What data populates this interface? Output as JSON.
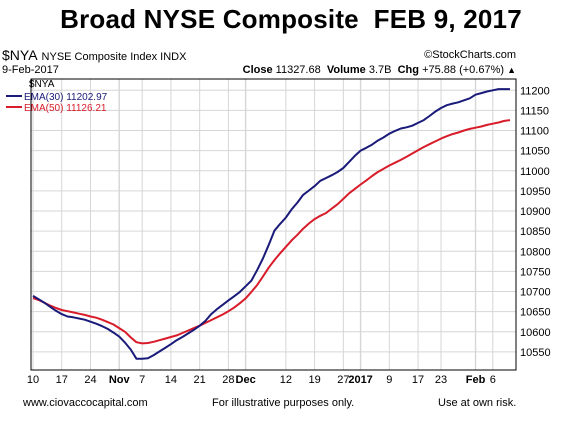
{
  "banner": "Broad NYSE Composite  FEB 9, 2017",
  "header": {
    "symbol": "$NYA",
    "name": "NYSE Composite Index INDX",
    "watermark": "©StockCharts.com",
    "date": "9-Feb-2017",
    "close_label": "Close",
    "close_value": "11327.68",
    "volume_label": "Volume",
    "volume_value": "3.7B",
    "chg_label": "Chg",
    "chg_value": "+75.88 (+0.67%)"
  },
  "footer": {
    "left": "www.ciovaccocapital.com",
    "center": "For illustrative purposes only.",
    "right": "Use at own risk."
  },
  "colors": {
    "ema30": "#1a1a7a",
    "ema50": "#d81c2a",
    "grid": "#d6d6d6",
    "frame": "#000000"
  },
  "chart_data": {
    "type": "line",
    "legend_title": "$NYA",
    "legend_position": "top-left",
    "grid": true,
    "ylim": [
      10505,
      11228
    ],
    "y_ticks": [
      10550,
      10600,
      10650,
      10700,
      10750,
      10800,
      10850,
      10900,
      10950,
      11000,
      11050,
      11100,
      11150,
      11200
    ],
    "x_ticks": [
      {
        "label": "10",
        "i": 0,
        "bold": false
      },
      {
        "label": "17",
        "i": 5,
        "bold": false
      },
      {
        "label": "24",
        "i": 10,
        "bold": false
      },
      {
        "label": "Nov",
        "i": 15,
        "bold": true
      },
      {
        "label": "7",
        "i": 19,
        "bold": false
      },
      {
        "label": "14",
        "i": 24,
        "bold": false
      },
      {
        "label": "21",
        "i": 29,
        "bold": false
      },
      {
        "label": "28",
        "i": 34,
        "bold": false
      },
      {
        "label": "Dec",
        "i": 37,
        "bold": true
      },
      {
        "label": "12",
        "i": 44,
        "bold": false
      },
      {
        "label": "19",
        "i": 49,
        "bold": false
      },
      {
        "label": "27",
        "i": 54,
        "bold": false
      },
      {
        "label": "2017",
        "i": 57,
        "bold": true
      },
      {
        "label": "9",
        "i": 62,
        "bold": false
      },
      {
        "label": "17",
        "i": 67,
        "bold": false
      },
      {
        "label": "23",
        "i": 71,
        "bold": false
      },
      {
        "label": "Feb",
        "i": 77,
        "bold": true
      },
      {
        "label": "6",
        "i": 80,
        "bold": false
      }
    ],
    "x_count": 84,
    "series": [
      {
        "name": "EMA(30)",
        "last_label": "11202.97",
        "color": "#1a1a7a",
        "values": [
          10689,
          10681,
          10672,
          10662,
          10652,
          10644,
          10638,
          10636,
          10633,
          10630,
          10625,
          10620,
          10614,
          10607,
          10598,
          10588,
          10573,
          10556,
          10533,
          10533,
          10534,
          10542,
          10551,
          10560,
          10569,
          10579,
          10587,
          10596,
          10605,
          10615,
          10627,
          10644,
          10656,
          10667,
          10678,
          10688,
          10699,
          10713,
          10727,
          10753,
          10782,
          10815,
          10851,
          10868,
          10884,
          10904,
          10921,
          10940,
          10951,
          10962,
          10975,
          10982,
          10989,
          10997,
          11007,
          11022,
          11037,
          11050,
          11057,
          11065,
          11075,
          11083,
          11092,
          11099,
          11105,
          11108,
          11112,
          11119,
          11126,
          11136,
          11147,
          11156,
          11163,
          11167,
          11170,
          11175,
          11180,
          11189,
          11193,
          11197,
          11200,
          11203,
          11203,
          11203
        ]
      },
      {
        "name": "EMA(50)",
        "last_label": "11126.21",
        "color": "#d81c2a",
        "values": [
          10684,
          10679,
          10672,
          10665,
          10659,
          10654,
          10651,
          10648,
          10645,
          10642,
          10638,
          10635,
          10630,
          10624,
          10618,
          10609,
          10600,
          10586,
          10574,
          10571,
          10572,
          10575,
          10579,
          10583,
          10587,
          10591,
          10597,
          10603,
          10609,
          10615,
          10622,
          10629,
          10636,
          10643,
          10651,
          10660,
          10671,
          10683,
          10699,
          10716,
          10737,
          10759,
          10778,
          10795,
          10811,
          10827,
          10841,
          10856,
          10869,
          10880,
          10888,
          10895,
          10906,
          10917,
          10930,
          10944,
          10955,
          10966,
          10976,
          10987,
          10997,
          11005,
          11013,
          11020,
          11027,
          11035,
          11043,
          11051,
          11059,
          11066,
          11073,
          11080,
          11086,
          11091,
          11095,
          11100,
          11104,
          11107,
          11110,
          11114,
          11117,
          11120,
          11124,
          11126
        ]
      }
    ]
  }
}
